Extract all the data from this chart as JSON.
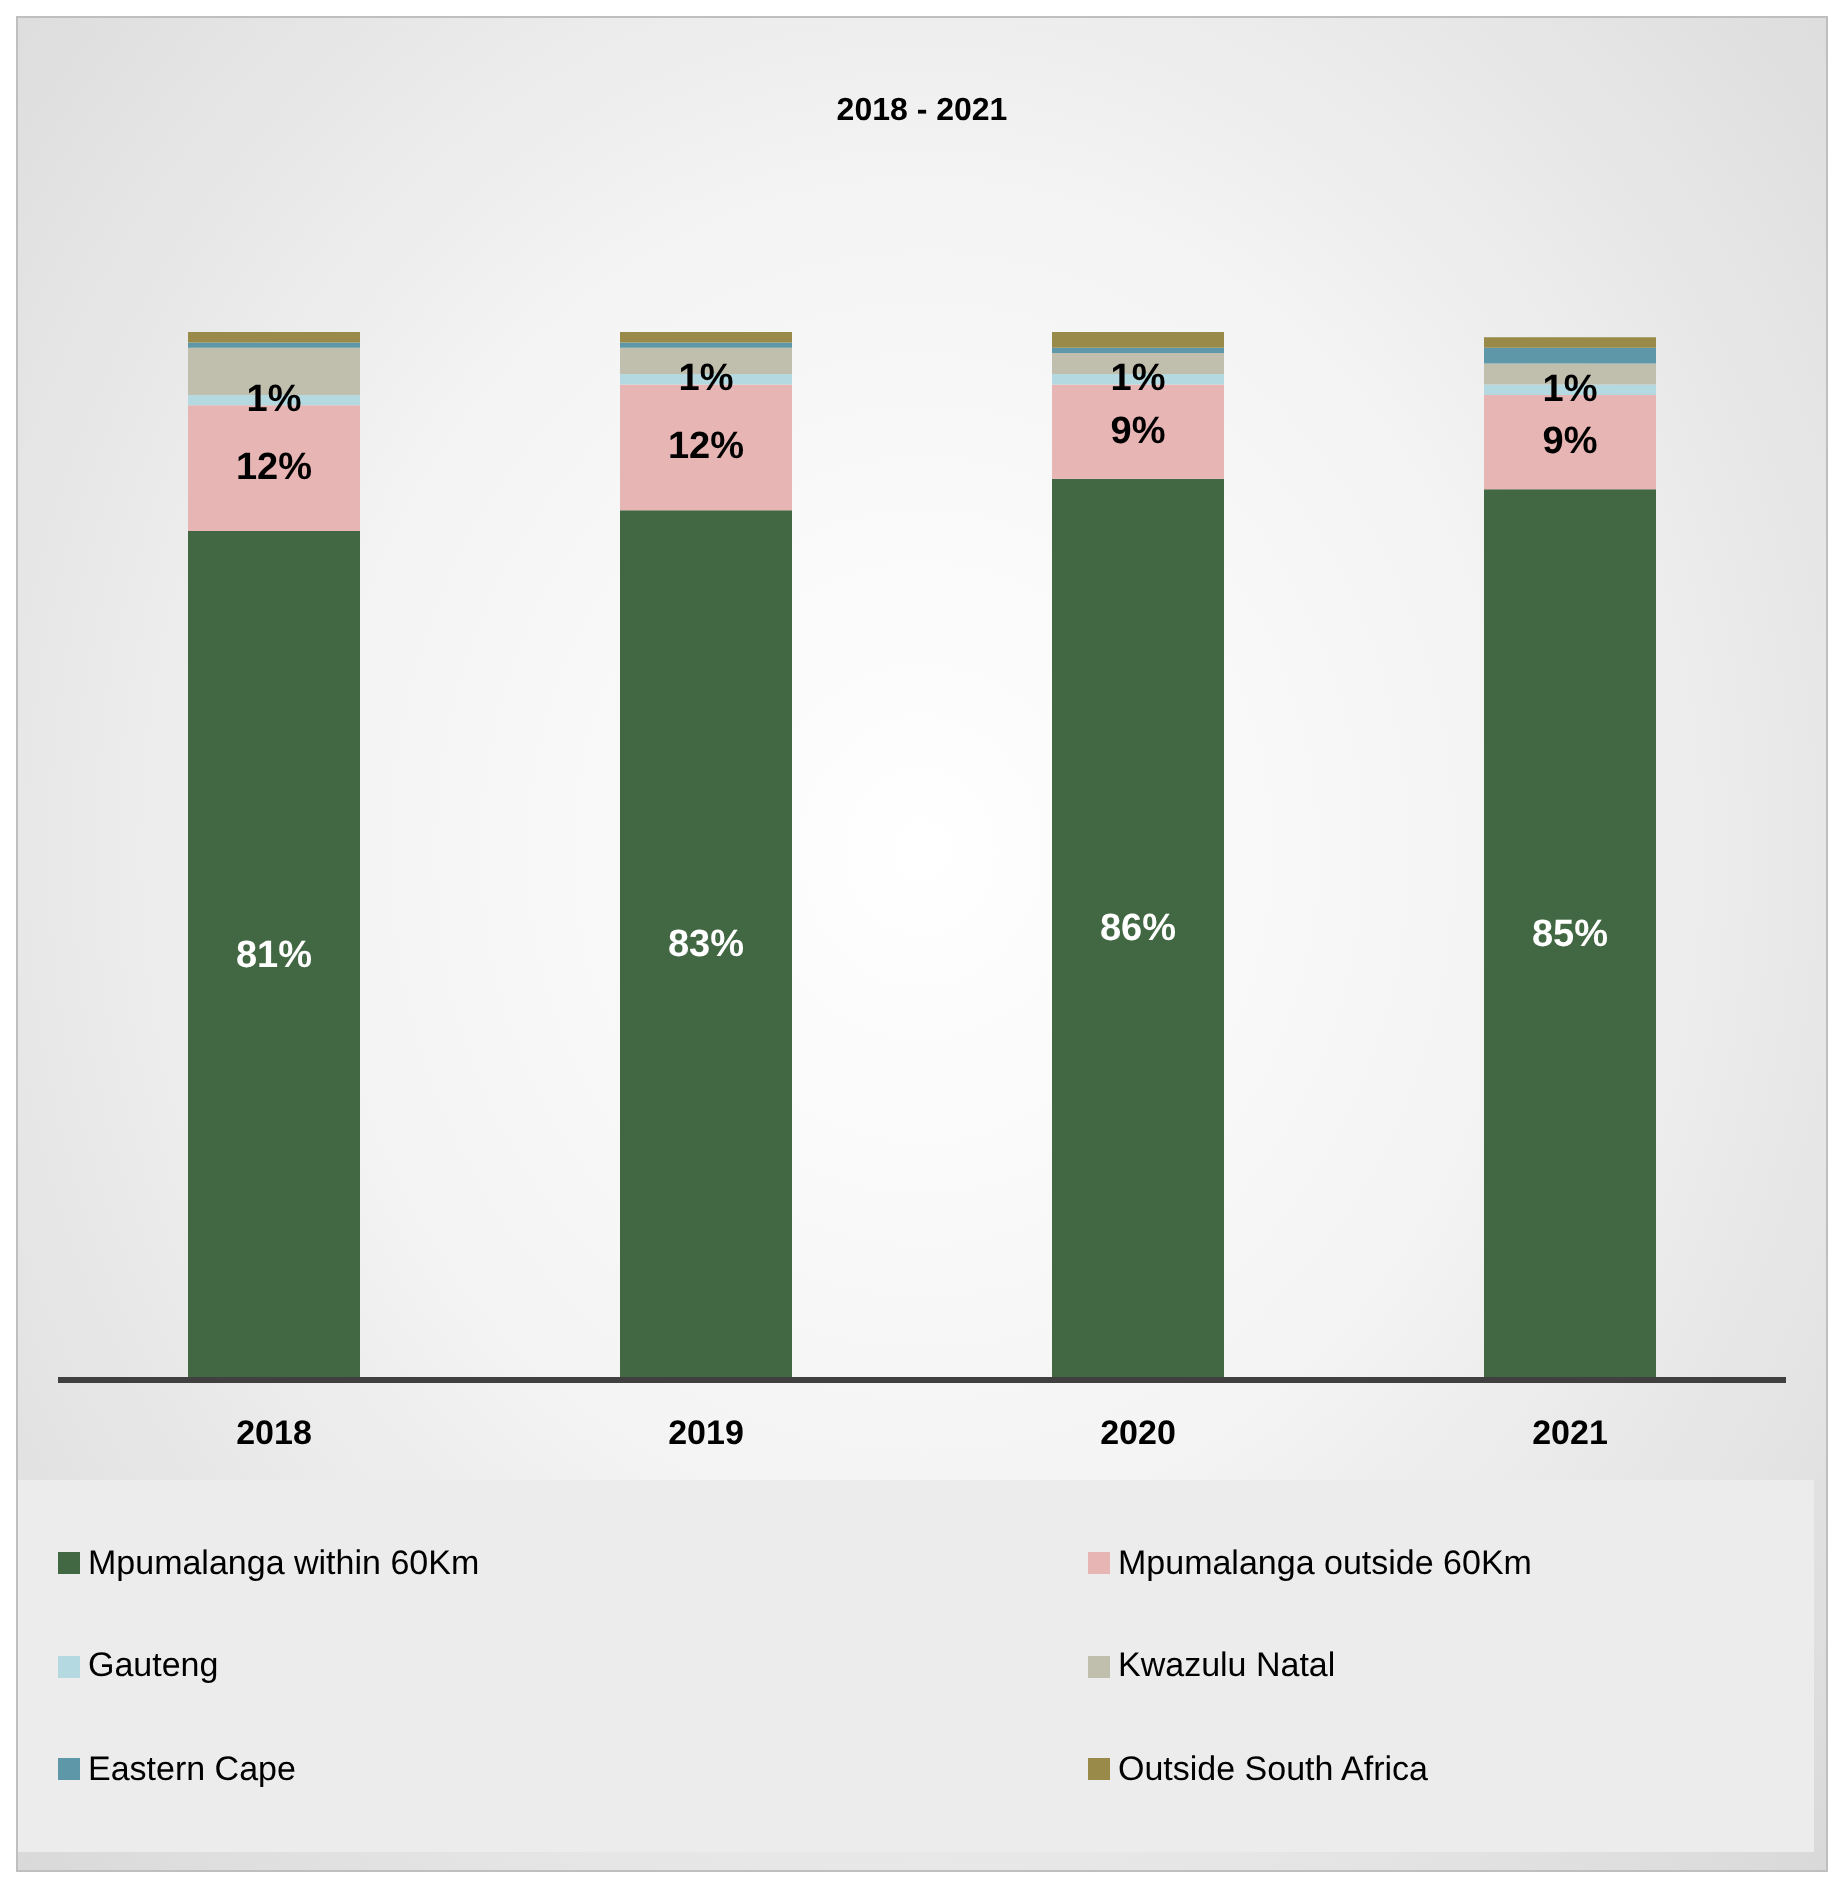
{
  "chart_data": {
    "type": "bar",
    "title": "2018 - 2021",
    "stacked": true,
    "legend": "bottom",
    "categories": [
      "2018",
      "2019",
      "2020",
      "2021"
    ],
    "series": [
      {
        "name": "Mpumalanga within 60Km",
        "color": "#426743",
        "values": [
          81,
          83,
          86,
          85
        ],
        "value_labels": [
          "81%",
          "83%",
          "86%",
          "85%"
        ]
      },
      {
        "name": "Mpumalanga outside 60Km",
        "color": "#e8b5b5",
        "values": [
          12,
          12,
          9,
          9
        ],
        "value_labels": [
          "12%",
          "12%",
          "9%",
          "9%"
        ]
      },
      {
        "name": "Gauteng",
        "color": "#b4d9e0",
        "values": [
          1,
          1,
          1,
          1
        ],
        "value_labels": [
          "1%",
          "1%",
          "1%",
          "1%"
        ]
      },
      {
        "name": "Kwazulu Natal",
        "color": "#c0bfae",
        "values": [
          4.5,
          2.5,
          2,
          2
        ],
        "value_labels": [
          null,
          null,
          null,
          null
        ]
      },
      {
        "name": "Eastern Cape",
        "color": "#5e97a8",
        "values": [
          0.5,
          0.5,
          0.5,
          1.5
        ],
        "value_labels": [
          null,
          null,
          null,
          null
        ]
      },
      {
        "name": "Outside South Africa",
        "color": "#998a4a",
        "values": [
          1,
          1,
          1.5,
          1
        ],
        "value_labels": [
          null,
          null,
          null,
          null
        ]
      }
    ]
  }
}
